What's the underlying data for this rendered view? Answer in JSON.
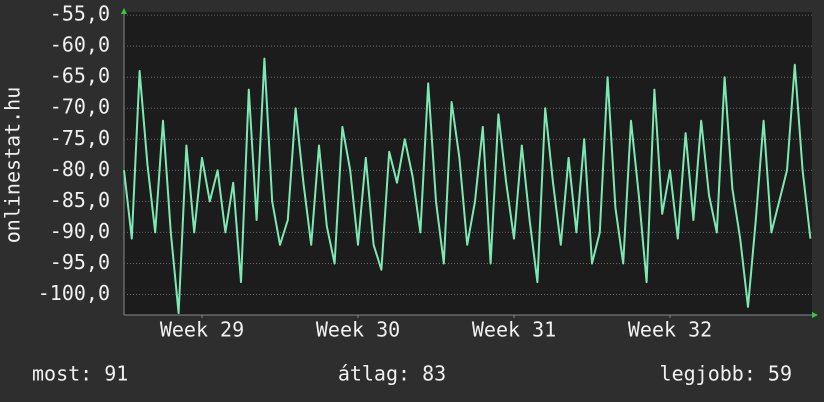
{
  "chart_data": {
    "type": "line",
    "ylabel": "onlinestat.hu",
    "x": [
      28.5,
      28.55,
      28.6,
      28.65,
      28.7,
      28.75,
      28.8,
      28.85,
      28.9,
      28.95,
      29.0,
      29.05,
      29.1,
      29.15,
      29.2,
      29.25,
      29.3,
      29.35,
      29.4,
      29.45,
      29.5,
      29.55,
      29.6,
      29.65,
      29.7,
      29.75,
      29.8,
      29.85,
      29.9,
      29.95,
      30.0,
      30.05,
      30.1,
      30.15,
      30.2,
      30.25,
      30.3,
      30.35,
      30.4,
      30.45,
      30.5,
      30.55,
      30.6,
      30.65,
      30.7,
      30.75,
      30.8,
      30.85,
      30.9,
      30.95,
      31.0,
      31.05,
      31.1,
      31.15,
      31.2,
      31.25,
      31.3,
      31.35,
      31.4,
      31.45,
      31.5,
      31.55,
      31.6,
      31.65,
      31.7,
      31.75,
      31.8,
      31.85,
      31.9,
      31.95,
      32.0,
      32.05,
      32.1,
      32.15,
      32.2,
      32.25,
      32.3,
      32.35,
      32.4,
      32.45,
      32.5,
      32.55,
      32.6,
      32.65,
      32.7,
      32.75,
      32.8,
      32.85,
      32.9
    ],
    "series": [
      {
        "color": "#7de8b4",
        "values": [
          -80,
          -91,
          -64,
          -79,
          -90,
          -72,
          -90,
          -103,
          -76,
          -90,
          -78,
          -85,
          -80,
          -90,
          -82,
          -98,
          -67,
          -88,
          -62,
          -85,
          -92,
          -88,
          -70,
          -82,
          -92,
          -76,
          -89,
          -95,
          -73,
          -80,
          -92,
          -78,
          -92,
          -96,
          -77,
          -82,
          -75,
          -81,
          -90,
          -66,
          -85,
          -95,
          -69,
          -78,
          -92,
          -85,
          -73,
          -95,
          -71,
          -82,
          -91,
          -76,
          -88,
          -98,
          -70,
          -82,
          -92,
          -78,
          -90,
          -75,
          -95,
          -90,
          -65,
          -86,
          -95,
          -72,
          -84,
          -98,
          -67,
          -87,
          -80,
          -91,
          -74,
          -88,
          -72,
          -84,
          -90,
          -65,
          -83,
          -91,
          -102,
          -88,
          -72,
          -90,
          -85,
          -80,
          -63,
          -80,
          -91
        ]
      }
    ],
    "xlim": [
      28.5,
      32.91
    ],
    "xticks": [
      {
        "value": 29,
        "label": "Week 29"
      },
      {
        "value": 30,
        "label": "Week 30"
      },
      {
        "value": 31,
        "label": "Week 31"
      },
      {
        "value": 32,
        "label": "Week 32"
      }
    ],
    "ylim": [
      -103.3,
      -54.5
    ],
    "yticks": [
      {
        "value": -55,
        "label": "-55,0"
      },
      {
        "value": -60,
        "label": "-60,0"
      },
      {
        "value": -65,
        "label": "-65,0"
      },
      {
        "value": -70,
        "label": "-70,0"
      },
      {
        "value": -75,
        "label": "-75,0"
      },
      {
        "value": -80,
        "label": "-80,0"
      },
      {
        "value": -85,
        "label": "-85,0"
      },
      {
        "value": -90,
        "label": "-90,0"
      },
      {
        "value": -95,
        "label": "-95,0"
      },
      {
        "value": -100,
        "label": "-100,0"
      }
    ],
    "grid": true,
    "footer": [
      "most: 91",
      "átlag: 83",
      "legjobb: 59"
    ]
  }
}
